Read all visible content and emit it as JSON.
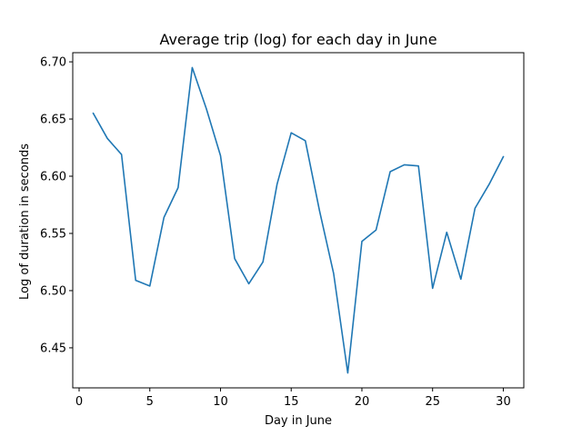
{
  "chart_data": {
    "type": "line",
    "title": "Average trip (log) for each day in June",
    "xlabel": "Day in June",
    "ylabel": "Log of duration in seconds",
    "xlim": [
      -0.45,
      31.45
    ],
    "ylim": [
      6.415,
      6.708
    ],
    "x_ticks": [
      0,
      5,
      10,
      15,
      20,
      25,
      30
    ],
    "x_tick_labels": [
      "0",
      "5",
      "10",
      "15",
      "20",
      "25",
      "30"
    ],
    "y_ticks": [
      6.45,
      6.5,
      6.55,
      6.6,
      6.65,
      6.7
    ],
    "y_tick_labels": [
      "6.45",
      "6.50",
      "6.55",
      "6.60",
      "6.65",
      "6.70"
    ],
    "grid": false,
    "series": [
      {
        "color": "#1f77b4",
        "x": [
          1,
          2,
          3,
          4,
          5,
          6,
          7,
          8,
          9,
          10,
          11,
          12,
          13,
          14,
          15,
          16,
          17,
          18,
          19,
          20,
          21,
          22,
          23,
          24,
          25,
          26,
          27,
          28,
          29,
          30
        ],
        "y": [
          6.655,
          6.633,
          6.619,
          6.509,
          6.504,
          6.564,
          6.59,
          6.695,
          6.659,
          6.618,
          6.528,
          6.506,
          6.525,
          6.593,
          6.638,
          6.631,
          6.57,
          6.515,
          6.428,
          6.543,
          6.553,
          6.604,
          6.61,
          6.609,
          6.502,
          6.551,
          6.51,
          6.572,
          6.593,
          6.617
        ]
      }
    ]
  }
}
